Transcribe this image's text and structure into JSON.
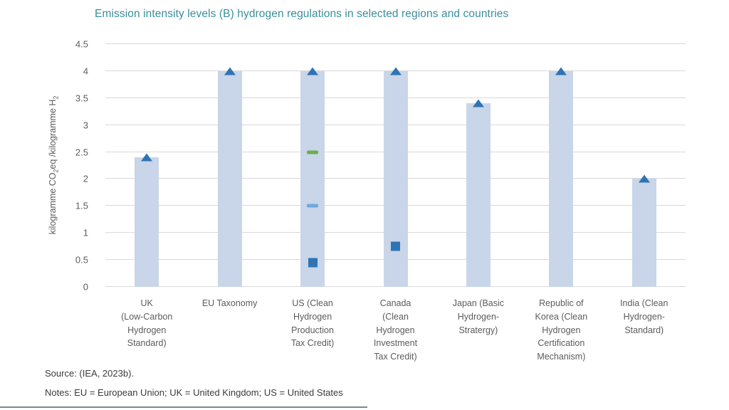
{
  "chart_data": {
    "type": "bar",
    "title": "Emission intensity levels (B) hydrogen regulations in selected regions and countries",
    "ylabel": "kilogramme CO₂eq /kilogramme H₂",
    "xlabel": "",
    "ylim": [
      0,
      4.5
    ],
    "yticks": [
      0,
      0.5,
      1,
      1.5,
      2,
      2.5,
      3,
      3.5,
      4,
      4.5
    ],
    "grid": true,
    "legend": "none",
    "categories": [
      "UK\n(Low-Carbon\nHydrogen\nStandard)",
      "EU Taxonomy",
      "US (Clean\nHydrogen\nProduction\nTax Credit)",
      "Canada\n(Clean\nHydrogen\nInvestment\nTax Credit)",
      "Japan (Basic\nHydrogen-\nStratergy)",
      "Republic of\nKorea (Clean\nHydrogen\nCertification\nMechanism)",
      "India (Clean\nHydrogen-\nStandard)"
    ],
    "bar_values": [
      2.4,
      4,
      4,
      4,
      3.4,
      4,
      2
    ],
    "bar_top_markers": {
      "shape": "triangle",
      "color": "#2e74b5"
    },
    "extra_markers": [
      {
        "category_index": 2,
        "value": 2.5,
        "shape": "dash",
        "color": "#6cae45"
      },
      {
        "category_index": 2,
        "value": 1.5,
        "shape": "dash",
        "color": "#6fa8dc"
      },
      {
        "category_index": 2,
        "value": 0.45,
        "shape": "square",
        "color": "#2e74b5"
      },
      {
        "category_index": 3,
        "value": 0.75,
        "shape": "square",
        "color": "#2e74b5"
      }
    ]
  },
  "footer": {
    "source": "Source: (IEA, 2023b).",
    "notes": "Notes: EU = European Union; UK = United Kingdom; US = United States"
  },
  "colors": {
    "title": "#3a8e9c",
    "bar_fill": "#c9d5e8",
    "grid": "#d9d9d9",
    "axis_text": "#5c5c5c",
    "footer_text": "#3b3b3b",
    "marker_blue": "#2e74b5",
    "marker_light_blue": "#6fa8dc",
    "marker_green": "#6cae45",
    "footer_rule": "#7d8692"
  }
}
